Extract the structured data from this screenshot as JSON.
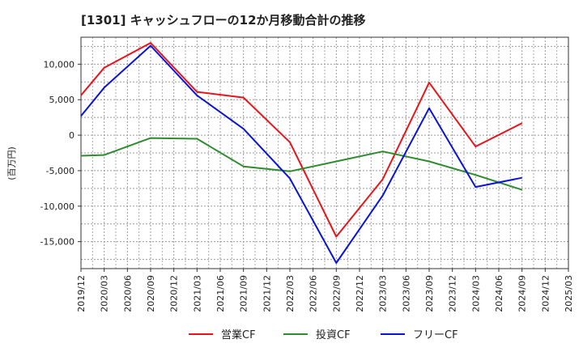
{
  "chart_data": {
    "type": "line",
    "title": "[1301]  キャッシュフローの12か月移動合計の推移",
    "ylabel": "(百万円)",
    "xlabel": "",
    "categories": [
      "2019/12",
      "2020/03",
      "2020/06",
      "2020/09",
      "2020/12",
      "2021/03",
      "2021/06",
      "2021/09",
      "2021/12",
      "2022/03",
      "2022/06",
      "2022/09",
      "2022/12",
      "2023/03",
      "2023/06",
      "2023/09",
      "2023/12",
      "2024/03",
      "2024/06",
      "2024/09",
      "2024/12",
      "2025/03"
    ],
    "ylim": [
      -18800,
      13800
    ],
    "yticks": [
      10000,
      5000,
      0,
      -5000,
      -10000,
      -15000
    ],
    "ytick_labels": [
      "10,000",
      "5,000",
      "0",
      "-5,000",
      "-10,000",
      "-15,000"
    ],
    "grid": true,
    "legend_position": "bottom",
    "series": [
      {
        "name": "営業CF",
        "color": "#e8141c",
        "points": [
          [
            "2019/12",
            5600
          ],
          [
            "2020/03",
            9500
          ],
          [
            "2020/09",
            13000
          ],
          [
            "2021/03",
            6100
          ],
          [
            "2021/09",
            5300
          ],
          [
            "2022/03",
            -1000
          ],
          [
            "2022/09",
            -14300
          ],
          [
            "2023/03",
            -6200
          ],
          [
            "2023/09",
            7400
          ],
          [
            "2024/03",
            -1600
          ],
          [
            "2024/09",
            1700
          ]
        ]
      },
      {
        "name": "投資CF",
        "color": "#2e8b2e",
        "points": [
          [
            "2019/12",
            -2900
          ],
          [
            "2020/03",
            -2800
          ],
          [
            "2020/09",
            -400
          ],
          [
            "2021/03",
            -500
          ],
          [
            "2021/09",
            -4400
          ],
          [
            "2022/03",
            -5100
          ],
          [
            "2022/09",
            -3700
          ],
          [
            "2023/03",
            -2300
          ],
          [
            "2023/09",
            -3700
          ],
          [
            "2024/03",
            -5600
          ],
          [
            "2024/09",
            -7700
          ]
        ]
      },
      {
        "name": "フリーCF",
        "color": "#0a14d4",
        "points": [
          [
            "2019/12",
            2700
          ],
          [
            "2020/03",
            6700
          ],
          [
            "2020/09",
            12600
          ],
          [
            "2021/03",
            5600
          ],
          [
            "2021/09",
            900
          ],
          [
            "2022/03",
            -6100
          ],
          [
            "2022/09",
            -18000
          ],
          [
            "2023/03",
            -8500
          ],
          [
            "2023/09",
            3800
          ],
          [
            "2024/03",
            -7300
          ],
          [
            "2024/09",
            -6000
          ]
        ]
      }
    ]
  }
}
